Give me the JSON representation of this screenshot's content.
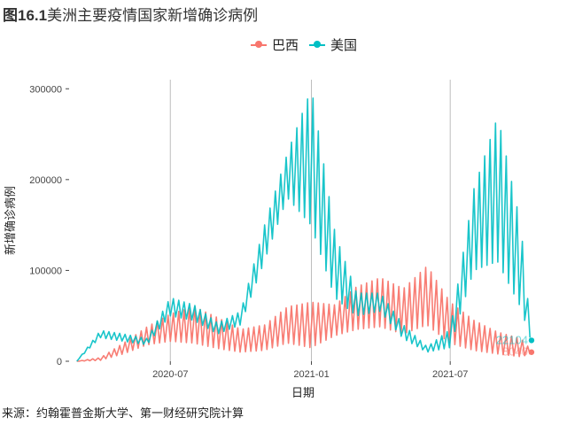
{
  "title": {
    "fig": "图16.1",
    "text": "美洲主要疫情国家新增确诊病例"
  },
  "source": "来源：约翰霍普金斯大学、第一财经研究院计算",
  "chart_data": {
    "type": "line",
    "xlabel": "日期",
    "ylabel": "新增确诊病例",
    "x_ticks": [
      "2020-07",
      "2021-01",
      "2021-07"
    ],
    "y_ticks": [
      "0",
      "100000",
      "200000",
      "300000"
    ],
    "xlim": [
      "2020-02-20",
      "2021-10-22"
    ],
    "ylim": [
      0,
      310000
    ],
    "grid": "vertical-major-lines",
    "legend_position": "top",
    "dates": [
      "2020-03-01",
      "2020-04-01",
      "2020-05-01",
      "2020-06-01",
      "2020-07-01",
      "2020-08-01",
      "2020-09-01",
      "2020-10-01",
      "2020-11-01",
      "2020-12-01",
      "2021-01-01",
      "2021-02-01",
      "2021-03-01",
      "2021-04-01",
      "2021-05-01",
      "2021-06-01",
      "2021-07-01",
      "2021-08-01",
      "2021-09-01",
      "2021-10-01",
      "2021-10-15"
    ],
    "series": [
      {
        "name": "巴西",
        "color": "#F8766D",
        "low": [
          0,
          1000,
          8000,
          18000,
          22000,
          20000,
          14000,
          10000,
          12000,
          20000,
          15000,
          28000,
          35000,
          38000,
          30000,
          40000,
          20000,
          12000,
          8000,
          5000,
          8000
        ],
        "high": [
          0,
          4000,
          20000,
          38000,
          52000,
          60000,
          48000,
          35000,
          40000,
          60000,
          65000,
          62000,
          82000,
          92000,
          80000,
          105000,
          65000,
          45000,
          32000,
          25000,
          12000
        ],
        "end_label": "8040"
      },
      {
        "name": "美国",
        "color": "#00BFC4",
        "low": [
          0,
          26000,
          22000,
          18000,
          50000,
          45000,
          30000,
          40000,
          110000,
          180000,
          150000,
          70000,
          50000,
          55000,
          25000,
          10000,
          15000,
          100000,
          110000,
          60000,
          22000
        ],
        "high": [
          0,
          34000,
          30000,
          25000,
          70000,
          62000,
          42000,
          55000,
          150000,
          230000,
          300000,
          140000,
          75000,
          75000,
          40000,
          16000,
          35000,
          190000,
          270000,
          150000,
          24000
        ],
        "end_label": "22104"
      }
    ]
  }
}
